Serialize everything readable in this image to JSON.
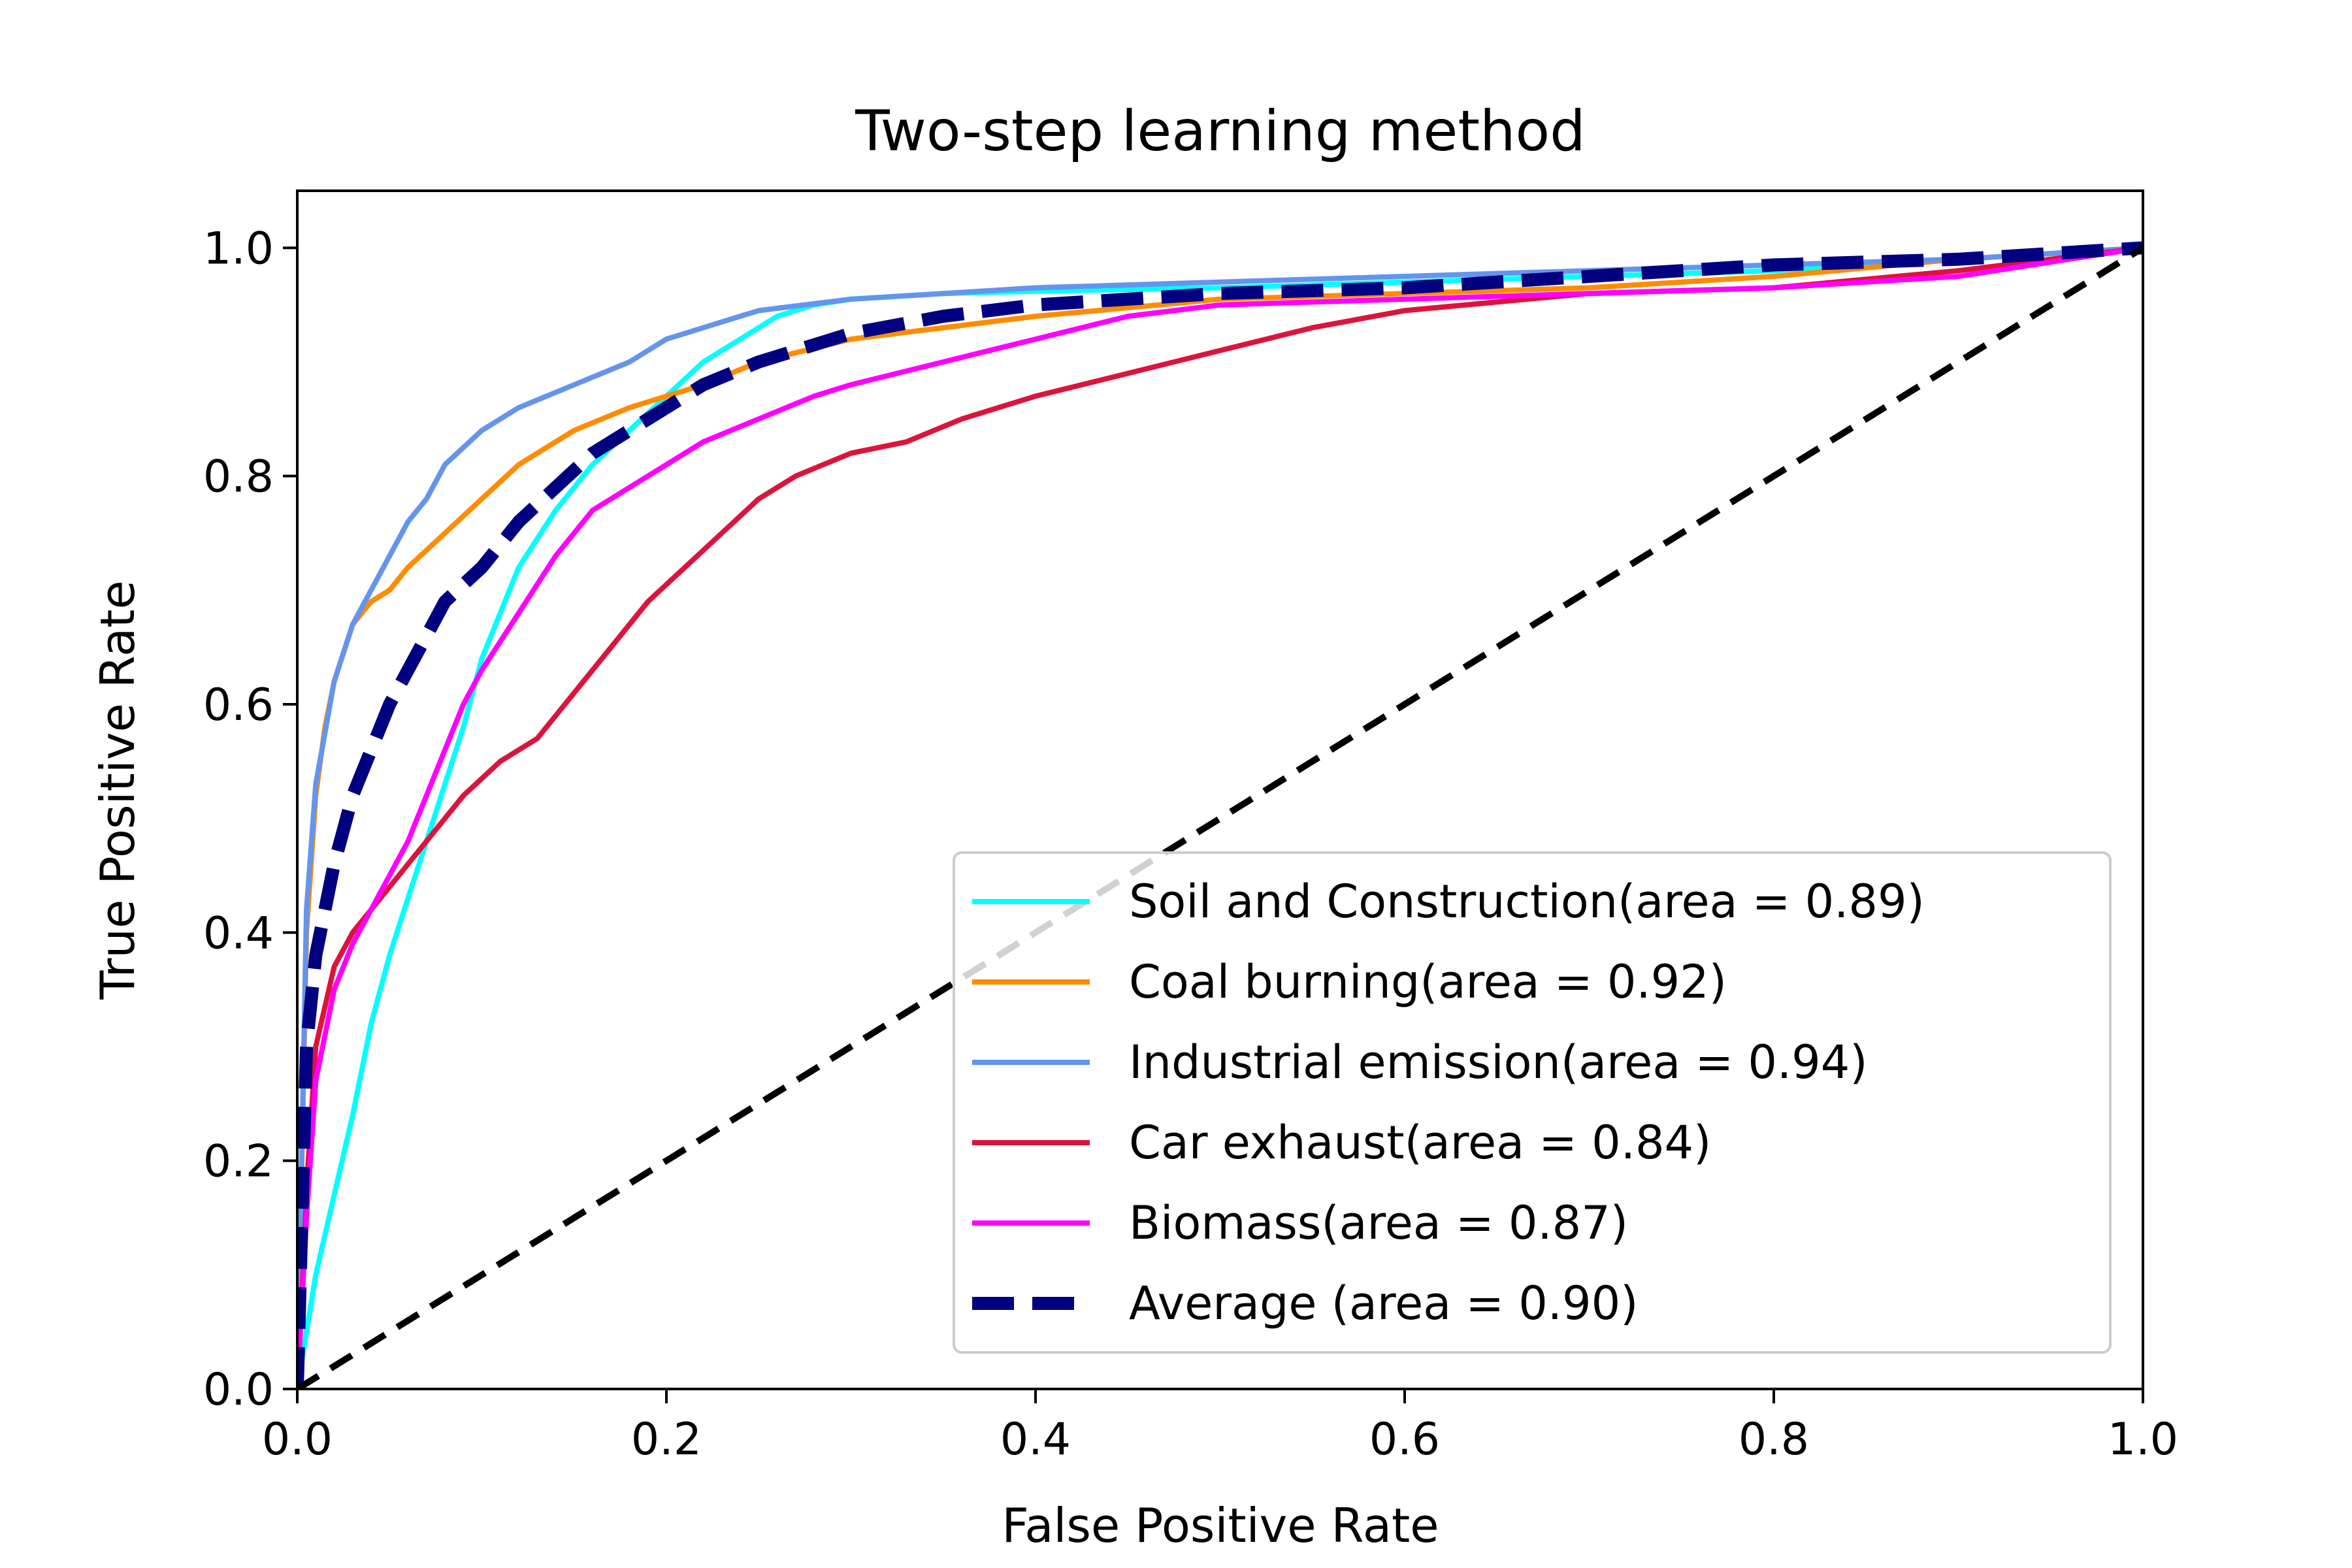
{
  "chart_data": {
    "type": "line",
    "title": "Two-step learning method",
    "xlabel": "False Positive Rate",
    "ylabel": "True Positive Rate",
    "xlim": [
      0.0,
      1.0
    ],
    "ylim": [
      0.0,
      1.05
    ],
    "xticks": [
      "0.0",
      "0.2",
      "0.4",
      "0.6",
      "0.8",
      "1.0"
    ],
    "yticks": [
      "0.0",
      "0.2",
      "0.4",
      "0.6",
      "0.8",
      "1.0"
    ],
    "grid": false,
    "legend_position": "lower-right",
    "series": [
      {
        "name": "Soil and Construction(area = 0.89)",
        "color": "#00ffff",
        "style": "solid",
        "x": [
          0,
          0.01,
          0.02,
          0.03,
          0.04,
          0.05,
          0.06,
          0.07,
          0.08,
          0.09,
          0.1,
          0.12,
          0.14,
          0.16,
          0.18,
          0.2,
          0.22,
          0.24,
          0.26,
          0.28,
          0.3,
          0.35,
          0.4,
          0.5,
          0.6,
          0.7,
          0.8,
          0.9,
          1.0
        ],
        "y": [
          0,
          0.1,
          0.17,
          0.24,
          0.32,
          0.38,
          0.43,
          0.48,
          0.53,
          0.58,
          0.64,
          0.72,
          0.77,
          0.81,
          0.84,
          0.87,
          0.9,
          0.92,
          0.94,
          0.95,
          0.955,
          0.96,
          0.962,
          0.965,
          0.97,
          0.975,
          0.98,
          0.99,
          1.0
        ]
      },
      {
        "name": "Coal burning(area = 0.92)",
        "color": "#ff8c00",
        "style": "solid",
        "x": [
          0,
          0.005,
          0.01,
          0.015,
          0.02,
          0.03,
          0.04,
          0.05,
          0.06,
          0.08,
          0.1,
          0.12,
          0.15,
          0.18,
          0.2,
          0.22,
          0.25,
          0.3,
          0.35,
          0.4,
          0.5,
          0.6,
          0.7,
          0.8,
          0.9,
          1.0
        ],
        "y": [
          0,
          0.4,
          0.52,
          0.58,
          0.62,
          0.67,
          0.69,
          0.7,
          0.72,
          0.75,
          0.78,
          0.81,
          0.84,
          0.86,
          0.87,
          0.88,
          0.9,
          0.92,
          0.93,
          0.94,
          0.955,
          0.96,
          0.965,
          0.975,
          0.99,
          1.0
        ]
      },
      {
        "name": "Industrial emission(area = 0.94)",
        "color": "#6495ed",
        "style": "solid",
        "x": [
          0,
          0.005,
          0.01,
          0.02,
          0.03,
          0.04,
          0.05,
          0.06,
          0.07,
          0.08,
          0.1,
          0.12,
          0.15,
          0.18,
          0.2,
          0.22,
          0.25,
          0.3,
          0.35,
          0.4,
          0.5,
          0.6,
          0.7,
          0.8,
          0.9,
          1.0
        ],
        "y": [
          0,
          0.42,
          0.53,
          0.62,
          0.67,
          0.7,
          0.73,
          0.76,
          0.78,
          0.81,
          0.84,
          0.86,
          0.88,
          0.9,
          0.92,
          0.93,
          0.945,
          0.955,
          0.96,
          0.965,
          0.97,
          0.975,
          0.98,
          0.985,
          0.99,
          1.0
        ]
      },
      {
        "name": "Car exhaust(area = 0.84)",
        "color": "#dc143c",
        "style": "solid",
        "x": [
          0,
          0.003,
          0.006,
          0.01,
          0.02,
          0.03,
          0.05,
          0.07,
          0.09,
          0.11,
          0.13,
          0.15,
          0.17,
          0.19,
          0.21,
          0.23,
          0.25,
          0.27,
          0.3,
          0.33,
          0.36,
          0.4,
          0.45,
          0.5,
          0.55,
          0.6,
          0.7,
          0.8,
          0.9,
          1.0
        ],
        "y": [
          0,
          0.1,
          0.2,
          0.3,
          0.37,
          0.4,
          0.44,
          0.48,
          0.52,
          0.55,
          0.57,
          0.61,
          0.65,
          0.69,
          0.72,
          0.75,
          0.78,
          0.8,
          0.82,
          0.83,
          0.85,
          0.87,
          0.89,
          0.91,
          0.93,
          0.945,
          0.96,
          0.965,
          0.98,
          1.0
        ]
      },
      {
        "name": "Biomass(area = 0.87)",
        "color": "#ff00ff",
        "style": "solid",
        "x": [
          0,
          0.005,
          0.01,
          0.02,
          0.03,
          0.04,
          0.05,
          0.06,
          0.07,
          0.08,
          0.09,
          0.1,
          0.12,
          0.14,
          0.16,
          0.18,
          0.2,
          0.22,
          0.25,
          0.28,
          0.3,
          0.35,
          0.4,
          0.45,
          0.5,
          0.6,
          0.7,
          0.8,
          0.9,
          1.0
        ],
        "y": [
          0,
          0.15,
          0.27,
          0.35,
          0.39,
          0.42,
          0.45,
          0.48,
          0.52,
          0.56,
          0.6,
          0.63,
          0.68,
          0.73,
          0.77,
          0.79,
          0.81,
          0.83,
          0.85,
          0.87,
          0.88,
          0.9,
          0.92,
          0.94,
          0.95,
          0.955,
          0.96,
          0.965,
          0.975,
          1.0
        ]
      },
      {
        "name": "Average (area = 0.90)",
        "color": "#000080",
        "style": "dashed",
        "x": [
          0,
          0.005,
          0.01,
          0.02,
          0.03,
          0.04,
          0.05,
          0.06,
          0.07,
          0.08,
          0.1,
          0.12,
          0.14,
          0.16,
          0.18,
          0.2,
          0.22,
          0.25,
          0.28,
          0.3,
          0.35,
          0.4,
          0.45,
          0.5,
          0.6,
          0.7,
          0.8,
          0.9,
          1.0
        ],
        "y": [
          0,
          0.3,
          0.38,
          0.46,
          0.52,
          0.56,
          0.6,
          0.63,
          0.66,
          0.69,
          0.72,
          0.76,
          0.79,
          0.82,
          0.84,
          0.86,
          0.88,
          0.9,
          0.915,
          0.925,
          0.94,
          0.95,
          0.955,
          0.96,
          0.965,
          0.975,
          0.985,
          0.99,
          1.0
        ]
      }
    ],
    "reference_line": {
      "x": [
        0,
        1
      ],
      "y": [
        0,
        1
      ],
      "color": "#000000",
      "style": "dashed"
    }
  }
}
